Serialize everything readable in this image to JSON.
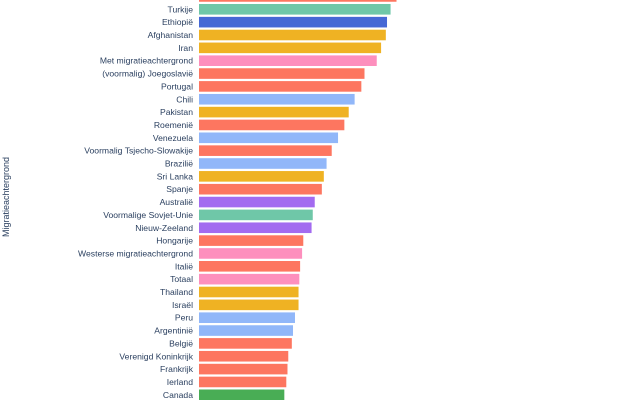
{
  "chart_data": {
    "type": "bar",
    "orientation": "horizontal",
    "ylabel": "Migratieachtergrond",
    "xlabel": "",
    "xlim": [
      0,
      100
    ],
    "grid": false,
    "legend": "none",
    "categories": [
      "",
      "Turkije",
      "Ethiopië",
      "Afghanistan",
      "Iran",
      "Met migratieachtergrond",
      "(voormalig) Joegoslavië",
      "Portugal",
      "Chili",
      "Pakistan",
      "Roemenië",
      "Venezuela",
      "Voormalig Tsjecho-Slowakije",
      "Brazilië",
      "Sri Lanka",
      "Spanje",
      "Australië",
      "Voormalige Sovjet-Unie",
      "Nieuw-Zeeland",
      "Hongarije",
      "Westerse migratieachtergrond",
      "Italië",
      "Totaal",
      "Thailand",
      "Israël",
      "Peru",
      "Argentinië",
      "België",
      "Verenigd Koninkrijk",
      "Frankrijk",
      "Ierland",
      "Canada"
    ],
    "values": [
      50.0,
      48.5,
      47.6,
      47.3,
      46.1,
      45.0,
      41.9,
      41.1,
      39.4,
      37.9,
      36.8,
      35.2,
      33.6,
      32.3,
      31.6,
      31.1,
      29.3,
      28.8,
      28.5,
      26.4,
      26.1,
      25.6,
      25.4,
      25.2,
      25.2,
      24.3,
      23.8,
      23.5,
      22.6,
      22.4,
      22.1,
      21.6
    ],
    "colors": [
      "#fd7660",
      "#6fc7a8",
      "#4668d5",
      "#efb223",
      "#efb223",
      "#fd8fbd",
      "#fd7660",
      "#fd7660",
      "#91b7f9",
      "#efb223",
      "#fd7660",
      "#91b7f9",
      "#fd7660",
      "#91b7f9",
      "#efb223",
      "#fd7660",
      "#a36bf0",
      "#6fc7a8",
      "#a36bf0",
      "#fd7660",
      "#fd8fbd",
      "#fd7660",
      "#fd8fbd",
      "#efb223",
      "#efb223",
      "#91b7f9",
      "#91b7f9",
      "#fd7660",
      "#fd7660",
      "#fd7660",
      "#fd7660",
      "#49ad55"
    ]
  }
}
